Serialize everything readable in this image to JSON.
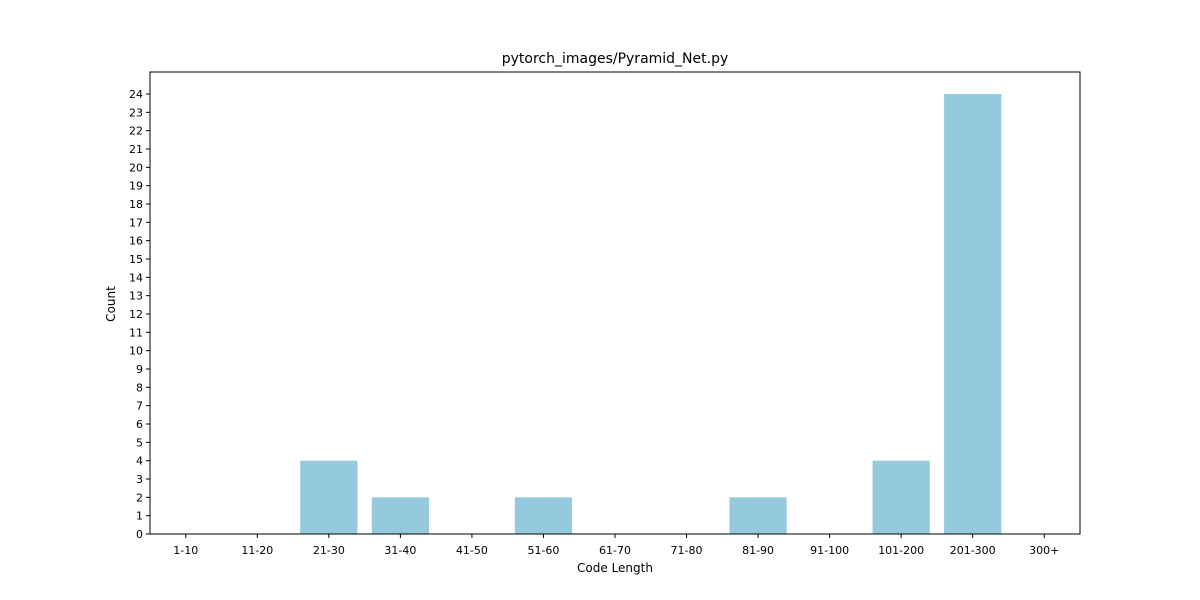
{
  "chart_data": {
    "type": "bar",
    "title": "pytorch_images/Pyramid_Net.py",
    "xlabel": "Code Length",
    "ylabel": "Count",
    "categories": [
      "1-10",
      "11-20",
      "21-30",
      "31-40",
      "41-50",
      "51-60",
      "61-70",
      "71-80",
      "81-90",
      "91-100",
      "101-200",
      "201-300",
      "300+"
    ],
    "values": [
      0,
      0,
      4,
      2,
      0,
      2,
      0,
      0,
      2,
      0,
      4,
      24,
      0
    ],
    "ylim": [
      0,
      25.2
    ],
    "yticks": [
      0,
      1,
      2,
      3,
      4,
      5,
      6,
      7,
      8,
      9,
      10,
      11,
      12,
      13,
      14,
      15,
      16,
      17,
      18,
      19,
      20,
      21,
      22,
      23,
      24
    ],
    "bar_color": "#95c9dd",
    "grid": false,
    "legend": "none"
  }
}
